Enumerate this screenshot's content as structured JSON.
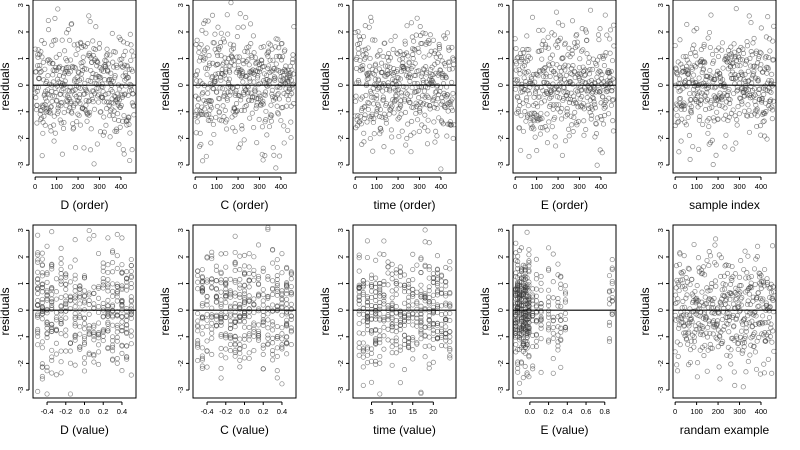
{
  "figure": {
    "point_color": "#3a3a3a",
    "marker": "open-circle"
  },
  "chart_data": [
    {
      "type": "scatter",
      "title": "",
      "xlabel": "D (order)",
      "ylabel": "residuals",
      "kind": "order",
      "xlim": [
        -10,
        470
      ],
      "ylim": [
        -3.3,
        3.2
      ],
      "xticks": [
        0,
        100,
        200,
        300,
        400
      ],
      "xtick_labels": [
        "0",
        "100",
        "200",
        "300",
        "400"
      ],
      "yticks": [
        -3,
        -2,
        -1,
        0,
        1,
        2,
        3
      ],
      "ytick_labels": [
        "-3",
        "-2",
        "-1",
        "0",
        "1",
        "2",
        "3"
      ],
      "hline": 0,
      "n": 450,
      "seed": 11
    },
    {
      "type": "scatter",
      "title": "",
      "xlabel": "C (order)",
      "ylabel": "residuals",
      "kind": "order",
      "xlim": [
        -10,
        470
      ],
      "ylim": [
        -3.3,
        3.2
      ],
      "xticks": [
        0,
        100,
        200,
        300,
        400
      ],
      "xtick_labels": [
        "0",
        "100",
        "200",
        "300",
        "400"
      ],
      "yticks": [
        -3,
        -2,
        -1,
        0,
        1,
        2,
        3
      ],
      "ytick_labels": [
        "-3",
        "-2",
        "-1",
        "0",
        "1",
        "2",
        "3"
      ],
      "hline": 0,
      "n": 450,
      "seed": 23
    },
    {
      "type": "scatter",
      "title": "",
      "xlabel": "time (order)",
      "ylabel": "residuals",
      "kind": "order",
      "xlim": [
        -10,
        470
      ],
      "ylim": [
        -3.3,
        3.2
      ],
      "xticks": [
        0,
        100,
        200,
        300,
        400
      ],
      "xtick_labels": [
        "0",
        "100",
        "200",
        "300",
        "400"
      ],
      "yticks": [
        -3,
        -2,
        -1,
        0,
        1,
        2,
        3
      ],
      "ytick_labels": [
        "-3",
        "-2",
        "-1",
        "0",
        "1",
        "2",
        "3"
      ],
      "hline": 0,
      "n": 450,
      "seed": 37
    },
    {
      "type": "scatter",
      "title": "",
      "xlabel": "E (order)",
      "ylabel": "residuals",
      "kind": "order",
      "xlim": [
        -10,
        470
      ],
      "ylim": [
        -3.3,
        3.2
      ],
      "xticks": [
        0,
        100,
        200,
        300,
        400
      ],
      "xtick_labels": [
        "0",
        "100",
        "200",
        "300",
        "400"
      ],
      "yticks": [
        -3,
        -2,
        -1,
        0,
        1,
        2,
        3
      ],
      "ytick_labels": [
        "-3",
        "-2",
        "-1",
        "0",
        "1",
        "2",
        "3"
      ],
      "hline": 0,
      "n": 450,
      "seed": 41
    },
    {
      "type": "scatter",
      "title": "",
      "xlabel": "sample index",
      "ylabel": "residuals",
      "kind": "order",
      "xlim": [
        -10,
        470
      ],
      "ylim": [
        -3.3,
        3.2
      ],
      "xticks": [
        0,
        100,
        200,
        300,
        400
      ],
      "xtick_labels": [
        "0",
        "100",
        "200",
        "300",
        "400"
      ],
      "yticks": [
        -3,
        -2,
        -1,
        0,
        1,
        2,
        3
      ],
      "ytick_labels": [
        "-3",
        "-2",
        "-1",
        "0",
        "1",
        "2",
        "3"
      ],
      "hline": 0,
      "n": 450,
      "seed": 53
    },
    {
      "type": "scatter",
      "title": "",
      "xlabel": "D (value)",
      "ylabel": "residuals",
      "kind": "discrete",
      "xlim": [
        -0.55,
        0.55
      ],
      "ylim": [
        -3.3,
        3.2
      ],
      "xticks": [
        -0.4,
        -0.2,
        0.0,
        0.2,
        0.4
      ],
      "xtick_labels": [
        "-0.4",
        "-0.2",
        "0.0",
        "0.2",
        "0.4"
      ],
      "yticks": [
        -3,
        -2,
        -1,
        0,
        1,
        2,
        3
      ],
      "ytick_labels": [
        "-3",
        "-2",
        "-1",
        "0",
        "1",
        "2",
        "3"
      ],
      "hline": 0,
      "levels": [
        -0.5,
        -0.45,
        -0.4,
        -0.35,
        -0.3,
        -0.25,
        -0.2,
        -0.15,
        -0.1,
        -0.05,
        0.0,
        0.05,
        0.1,
        0.15,
        0.2,
        0.25,
        0.3,
        0.35,
        0.4,
        0.45,
        0.5
      ],
      "n": 420,
      "seed": 67
    },
    {
      "type": "scatter",
      "title": "",
      "xlabel": "C (value)",
      "ylabel": "residuals",
      "kind": "discrete",
      "xlim": [
        -0.55,
        0.55
      ],
      "ylim": [
        -3.3,
        3.2
      ],
      "xticks": [
        -0.4,
        -0.2,
        0.0,
        0.2,
        0.4
      ],
      "xtick_labels": [
        "-0.4",
        "-0.2",
        "0.0",
        "0.2",
        "0.4"
      ],
      "yticks": [
        -3,
        -2,
        -1,
        0,
        1,
        2,
        3
      ],
      "ytick_labels": [
        "-3",
        "-2",
        "-1",
        "0",
        "1",
        "2",
        "3"
      ],
      "hline": 0,
      "levels": [
        -0.5,
        -0.45,
        -0.4,
        -0.35,
        -0.3,
        -0.25,
        -0.2,
        -0.15,
        -0.1,
        -0.05,
        0.0,
        0.05,
        0.1,
        0.15,
        0.2,
        0.25,
        0.3,
        0.35,
        0.4,
        0.45,
        0.5
      ],
      "n": 420,
      "seed": 79
    },
    {
      "type": "scatter",
      "title": "",
      "xlabel": "time (value)",
      "ylabel": "residuals",
      "kind": "discrete",
      "xlim": [
        0.5,
        25.5
      ],
      "ylim": [
        -3.3,
        3.2
      ],
      "xticks": [
        5,
        10,
        15,
        20
      ],
      "xtick_labels": [
        "5",
        "10",
        "15",
        "20"
      ],
      "yticks": [
        -3,
        -2,
        -1,
        0,
        1,
        2,
        3
      ],
      "ytick_labels": [
        "-3",
        "-2",
        "-1",
        "0",
        "1",
        "2",
        "3"
      ],
      "hline": 0,
      "levels": [
        2,
        3,
        4,
        5,
        6,
        7,
        8,
        9,
        10,
        11,
        12,
        13,
        14,
        15,
        16,
        17,
        18,
        19,
        20,
        21,
        22,
        23,
        24
      ],
      "n": 440,
      "seed": 83
    },
    {
      "type": "scatter",
      "title": "",
      "xlabel": "E (value)",
      "ylabel": "residuals",
      "kind": "skewed",
      "xlim": [
        -0.18,
        0.92
      ],
      "ylim": [
        -3.3,
        3.2
      ],
      "xticks": [
        0.0,
        0.2,
        0.4,
        0.6,
        0.8
      ],
      "xtick_labels": [
        "0.0",
        "0.2",
        "0.4",
        "0.6",
        "0.8"
      ],
      "yticks": [
        -3,
        -2,
        -1,
        0,
        1,
        2,
        3
      ],
      "ytick_labels": [
        "-3",
        "-2",
        "-1",
        "0",
        "1",
        "2",
        "3"
      ],
      "hline": 0,
      "levels": [
        -0.15,
        -0.13,
        -0.11,
        -0.09,
        -0.07,
        -0.05,
        -0.03,
        -0.01,
        0.03,
        0.07,
        0.12,
        0.2,
        0.25,
        0.3,
        0.33,
        0.38,
        0.85,
        0.88
      ],
      "n": 420,
      "seed": 97
    },
    {
      "type": "scatter",
      "title": "",
      "xlabel": "randam example",
      "ylabel": "residuals",
      "kind": "order",
      "xlim": [
        -10,
        470
      ],
      "ylim": [
        -3.3,
        3.2
      ],
      "xticks": [
        0,
        100,
        200,
        300,
        400
      ],
      "xtick_labels": [
        "0",
        "100",
        "200",
        "300",
        "400"
      ],
      "yticks": [
        -3,
        -2,
        -1,
        0,
        1,
        2,
        3
      ],
      "ytick_labels": [
        "-3",
        "-2",
        "-1",
        "0",
        "1",
        "2",
        "3"
      ],
      "hline": 0,
      "n": 450,
      "seed": 101
    }
  ]
}
